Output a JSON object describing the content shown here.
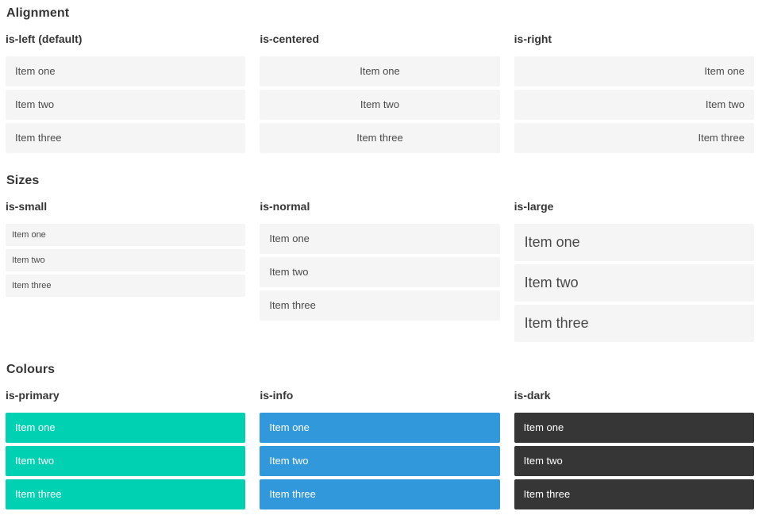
{
  "sections": [
    {
      "title": "Alignment",
      "columns": [
        {
          "label": "is-left (default)",
          "variant": "align-left",
          "items": [
            "Item one",
            "Item two",
            "Item three"
          ]
        },
        {
          "label": "is-centered",
          "variant": "align-center",
          "items": [
            "Item one",
            "Item two",
            "Item three"
          ]
        },
        {
          "label": "is-right",
          "variant": "align-right",
          "items": [
            "Item one",
            "Item two",
            "Item three"
          ]
        }
      ]
    },
    {
      "title": "Sizes",
      "columns": [
        {
          "label": "is-small",
          "variant": "size-small",
          "items": [
            "Item one",
            "Item two",
            "Item three"
          ]
        },
        {
          "label": "is-normal",
          "variant": "size-normal",
          "items": [
            "Item one",
            "Item two",
            "Item three"
          ]
        },
        {
          "label": "is-large",
          "variant": "size-large",
          "items": [
            "Item one",
            "Item two",
            "Item three"
          ]
        }
      ]
    },
    {
      "title": "Colours",
      "columns": [
        {
          "label": "is-primary",
          "variant": "color-primary",
          "items": [
            "Item one",
            "Item two",
            "Item three"
          ]
        },
        {
          "label": "is-info",
          "variant": "color-info",
          "items": [
            "Item one",
            "Item two",
            "Item three"
          ]
        },
        {
          "label": "is-dark",
          "variant": "color-dark",
          "items": [
            "Item one",
            "Item two",
            "Item three"
          ]
        }
      ]
    }
  ],
  "colors": {
    "primary": "#00d1b2",
    "info": "#3298dc",
    "dark": "#363636",
    "item_background": "#f5f5f5",
    "item_text": "#4a4a4a",
    "heading_text": "#363636",
    "page_background": "#ffffff"
  }
}
